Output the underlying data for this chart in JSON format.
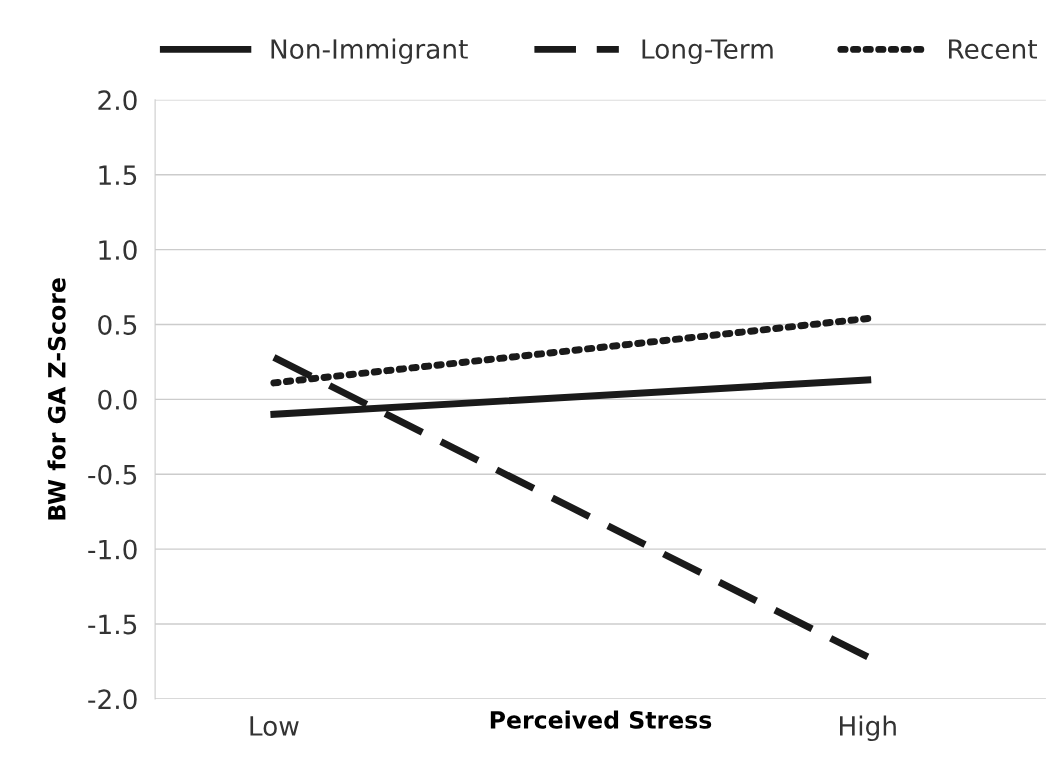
{
  "chart_data": {
    "type": "line",
    "xlabel": "Perceived Stress",
    "ylabel": "BW for GA Z-Score",
    "categories": [
      "Low",
      "High"
    ],
    "ylim": [
      -2.0,
      2.0
    ],
    "yticks": [
      {
        "value": 2.0,
        "label": "2.0"
      },
      {
        "value": 1.5,
        "label": "1.5"
      },
      {
        "value": 1.0,
        "label": "1.0"
      },
      {
        "value": 0.5,
        "label": "0.5"
      },
      {
        "value": 0.0,
        "label": "0.0"
      },
      {
        "value": -0.5,
        "label": "-0.5"
      },
      {
        "value": -1.0,
        "label": "-1.0"
      },
      {
        "value": -1.5,
        "label": "-1.5"
      },
      {
        "value": -2.0,
        "label": "-2.0"
      }
    ],
    "grid": "y",
    "legend": "top",
    "marker": "none",
    "series": [
      {
        "name": "Non-Immigrant",
        "color": "#1a1a1a",
        "line_style": "solid",
        "values": [
          -0.1,
          0.13
        ]
      },
      {
        "name": "Long-Term",
        "color": "#1a1a1a",
        "line_style": "dashed",
        "values": [
          0.28,
          -1.72
        ]
      },
      {
        "name": "Recent",
        "color": "#1a1a1a",
        "line_style": "dotted",
        "values": [
          0.11,
          0.54
        ]
      }
    ]
  }
}
